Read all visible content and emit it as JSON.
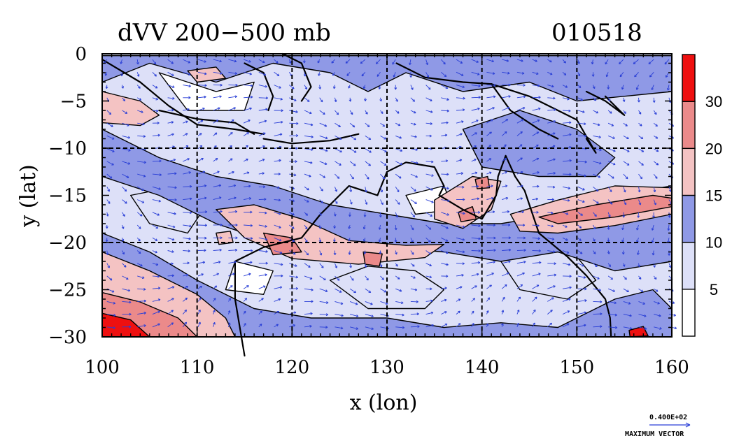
{
  "chart_data": {
    "type": "contour-map",
    "title": "dVV 200−500 mb",
    "date_label": "010518",
    "xlabel": "x (lon)",
    "ylabel": "y (lat)",
    "xlim": [
      100,
      160
    ],
    "ylim": [
      -30,
      0
    ],
    "x_ticks": [
      100,
      110,
      120,
      130,
      140,
      150,
      160
    ],
    "x_tick_labels": [
      "100",
      "110",
      "120",
      "130",
      "140",
      "150",
      "160"
    ],
    "y_ticks": [
      0,
      -5,
      -10,
      -15,
      -20,
      -25,
      -30
    ],
    "y_tick_labels": [
      "0",
      "−5",
      "−10",
      "−15",
      "−20",
      "−25",
      "−30"
    ],
    "grid_x": [
      110,
      120,
      130,
      140,
      150
    ],
    "grid_y": [
      -10,
      -20
    ],
    "colorbar": {
      "levels": [
        0,
        5,
        10,
        15,
        20,
        30,
        40
      ],
      "labels": [
        "5",
        "10",
        "15",
        "20",
        "30"
      ],
      "colors": [
        "#ffffff",
        "#dde0f8",
        "#8f99e6",
        "#f4c3c3",
        "#eb8a8a",
        "#ee1010"
      ]
    },
    "vector_color": "#2a3fd6",
    "max_vector": {
      "value": "0.400E+02",
      "label": "MAXIMUM VECTOR"
    },
    "regions": [
      {
        "level": 2,
        "poly": [
          [
            100,
            -0.2
          ],
          [
            160,
            -0.2
          ],
          [
            160,
            -4
          ],
          [
            150,
            -5
          ],
          [
            145,
            -3
          ],
          [
            138,
            -4
          ],
          [
            132,
            -2
          ],
          [
            128,
            -4
          ],
          [
            124,
            -2
          ],
          [
            118,
            -1
          ],
          [
            112,
            -3
          ],
          [
            105,
            -1
          ],
          [
            100,
            -3
          ]
        ]
      },
      {
        "level": 2,
        "poly": [
          [
            100,
            -8
          ],
          [
            106,
            -11
          ],
          [
            112,
            -13
          ],
          [
            118,
            -14
          ],
          [
            124,
            -16
          ],
          [
            130,
            -17
          ],
          [
            136,
            -18
          ],
          [
            142,
            -18
          ],
          [
            148,
            -17
          ],
          [
            154,
            -15
          ],
          [
            160,
            -14
          ],
          [
            160,
            -22
          ],
          [
            154,
            -23
          ],
          [
            148,
            -21
          ],
          [
            142,
            -22
          ],
          [
            136,
            -21
          ],
          [
            130,
            -20.5
          ],
          [
            124,
            -21.5
          ],
          [
            118,
            -20
          ],
          [
            112,
            -18
          ],
          [
            106,
            -15
          ],
          [
            100,
            -13
          ]
        ]
      },
      {
        "level": 2,
        "poly": [
          [
            100,
            -19
          ],
          [
            105,
            -21
          ],
          [
            110,
            -24
          ],
          [
            116,
            -27
          ],
          [
            122,
            -28
          ],
          [
            130,
            -28
          ],
          [
            136,
            -29
          ],
          [
            142,
            -28.5
          ],
          [
            148,
            -29
          ],
          [
            154,
            -26
          ],
          [
            158,
            -25
          ],
          [
            160,
            -27
          ],
          [
            160,
            -30
          ],
          [
            100,
            -30
          ]
        ]
      },
      {
        "level": 2,
        "poly": [
          [
            138,
            -8
          ],
          [
            144,
            -6
          ],
          [
            150,
            -8
          ],
          [
            154,
            -11
          ],
          [
            152,
            -13
          ],
          [
            146,
            -13
          ],
          [
            140,
            -12
          ]
        ]
      },
      {
        "level": 1,
        "poly": [
          [
            103,
            -15
          ],
          [
            108,
            -14
          ],
          [
            111,
            -16
          ],
          [
            109,
            -19
          ],
          [
            105,
            -18
          ]
        ]
      },
      {
        "level": 1,
        "poly": [
          [
            124,
            -24
          ],
          [
            128,
            -22.5
          ],
          [
            133,
            -23
          ],
          [
            136,
            -25
          ],
          [
            134,
            -27
          ],
          [
            128,
            -27
          ]
        ]
      },
      {
        "level": 1,
        "poly": [
          [
            142,
            -22
          ],
          [
            146,
            -20.5
          ],
          [
            150,
            -21.5
          ],
          [
            152,
            -24
          ],
          [
            149,
            -26
          ],
          [
            144,
            -25
          ]
        ]
      },
      {
        "level": 0,
        "poly": [
          [
            106,
            -2
          ],
          [
            112,
            -4
          ],
          [
            116,
            -3
          ],
          [
            115,
            -6
          ],
          [
            109,
            -6
          ]
        ]
      },
      {
        "level": 0,
        "poly": [
          [
            132,
            -15
          ],
          [
            136,
            -14
          ],
          [
            137,
            -16.5
          ],
          [
            133,
            -17
          ]
        ]
      },
      {
        "level": 0,
        "poly": [
          [
            114,
            -22
          ],
          [
            118,
            -23
          ],
          [
            117,
            -25.5
          ],
          [
            113,
            -25
          ]
        ]
      },
      {
        "level": 3,
        "poly": [
          [
            100,
            -4
          ],
          [
            104,
            -5
          ],
          [
            106,
            -6.5
          ],
          [
            104,
            -7.6
          ],
          [
            100,
            -7.3
          ]
        ]
      },
      {
        "level": 3,
        "poly": [
          [
            112,
            -16.5
          ],
          [
            116,
            -16
          ],
          [
            121,
            -17.5
          ],
          [
            126,
            -19.8
          ],
          [
            132,
            -20.3
          ],
          [
            136,
            -20.2
          ],
          [
            134,
            -21.6
          ],
          [
            127,
            -22.3
          ],
          [
            120,
            -21.7
          ],
          [
            115,
            -19.5
          ]
        ]
      },
      {
        "level": 3,
        "poly": [
          [
            135,
            -15.5
          ],
          [
            139,
            -13
          ],
          [
            142,
            -13.5
          ],
          [
            141,
            -16.5
          ],
          [
            138,
            -18.5
          ],
          [
            135,
            -17.5
          ]
        ]
      },
      {
        "level": 3,
        "poly": [
          [
            143,
            -17
          ],
          [
            148,
            -15.5
          ],
          [
            154,
            -14
          ],
          [
            160,
            -14.2
          ],
          [
            160,
            -17
          ],
          [
            154,
            -18.2
          ],
          [
            148,
            -19
          ],
          [
            144,
            -18.8
          ]
        ]
      },
      {
        "level": 3,
        "poly": [
          [
            100,
            -21
          ],
          [
            105,
            -23
          ],
          [
            110,
            -25.5
          ],
          [
            113,
            -28
          ],
          [
            114,
            -30
          ],
          [
            100,
            -30
          ]
        ]
      },
      {
        "level": 3,
        "poly": [
          [
            112,
            -19
          ],
          [
            113.5,
            -18.8
          ],
          [
            113.8,
            -20
          ],
          [
            112.3,
            -20.2
          ]
        ]
      },
      {
        "level": 3,
        "poly": [
          [
            109,
            -1.8
          ],
          [
            112,
            -1.4
          ],
          [
            113,
            -2.6
          ],
          [
            110,
            -3
          ]
        ]
      },
      {
        "level": 4,
        "poly": [
          [
            117,
            -19
          ],
          [
            120,
            -19.5
          ],
          [
            121,
            -21
          ],
          [
            118,
            -21.3
          ]
        ]
      },
      {
        "level": 4,
        "poly": [
          [
            127.5,
            -21
          ],
          [
            129.5,
            -21.2
          ],
          [
            129.2,
            -22.5
          ],
          [
            127.7,
            -22.3
          ]
        ]
      },
      {
        "level": 4,
        "poly": [
          [
            137.5,
            -16.8
          ],
          [
            139,
            -16.2
          ],
          [
            139.4,
            -17.5
          ],
          [
            137.8,
            -17.8
          ]
        ]
      },
      {
        "level": 4,
        "poly": [
          [
            139.3,
            -13.3
          ],
          [
            140.6,
            -13
          ],
          [
            140.8,
            -14.2
          ],
          [
            139.5,
            -14.3
          ]
        ]
      },
      {
        "level": 4,
        "poly": [
          [
            146,
            -17.3
          ],
          [
            152,
            -16
          ],
          [
            158,
            -15
          ],
          [
            160,
            -15.3
          ],
          [
            160,
            -16.2
          ],
          [
            154,
            -17.3
          ],
          [
            148,
            -18
          ]
        ]
      },
      {
        "level": 4,
        "poly": [
          [
            100,
            -25.3
          ],
          [
            104,
            -26.3
          ],
          [
            108,
            -28
          ],
          [
            110,
            -30
          ],
          [
            100,
            -30
          ]
        ]
      },
      {
        "level": 5,
        "poly": [
          [
            100,
            -27.5
          ],
          [
            103,
            -28.2
          ],
          [
            105,
            -30
          ],
          [
            100,
            -30
          ]
        ]
      },
      {
        "level": 5,
        "poly": [
          [
            155.5,
            -29.3
          ],
          [
            157,
            -28.9
          ],
          [
            157.5,
            -29.9
          ],
          [
            155.6,
            -30
          ]
        ]
      }
    ],
    "coastlines": [
      [
        [
          100,
          -0.6
        ],
        [
          104,
          -3
        ],
        [
          107,
          -5.5
        ],
        [
          110,
          -7.5
        ],
        [
          114,
          -8
        ],
        [
          117,
          -8.5
        ]
      ],
      [
        [
          106,
          -6
        ],
        [
          110,
          -6.9
        ],
        [
          114,
          -7.3
        ],
        [
          116,
          -8.5
        ]
      ],
      [
        [
          117,
          -9
        ],
        [
          120,
          -9.5
        ],
        [
          124,
          -9.2
        ],
        [
          127,
          -8.5
        ]
      ],
      [
        [
          115,
          -1
        ],
        [
          117,
          -2
        ],
        [
          118,
          -4.5
        ],
        [
          117.5,
          -6
        ]
      ],
      [
        [
          119,
          0
        ],
        [
          121,
          -1
        ],
        [
          122,
          -3.5
        ],
        [
          121,
          -5
        ]
      ],
      [
        [
          131,
          -1
        ],
        [
          134,
          -2.5
        ],
        [
          138,
          -3
        ],
        [
          141,
          -3.2
        ],
        [
          145,
          -4.5
        ],
        [
          148,
          -6
        ],
        [
          150,
          -7
        ],
        [
          152,
          -10.5
        ],
        [
          151,
          -9
        ]
      ],
      [
        [
          141,
          -3.2
        ],
        [
          143,
          -6
        ],
        [
          146,
          -8
        ],
        [
          148,
          -9
        ]
      ],
      [
        [
          151,
          -4
        ],
        [
          153,
          -5
        ],
        [
          155,
          -6.5
        ],
        [
          153,
          -4.5
        ]
      ],
      [
        [
          114,
          -22
        ],
        [
          114,
          -26
        ],
        [
          115,
          -32
        ]
      ],
      [
        [
          114,
          -22
        ],
        [
          117,
          -20.5
        ],
        [
          121,
          -19.5
        ],
        [
          123,
          -17
        ],
        [
          126,
          -14
        ],
        [
          129,
          -15
        ],
        [
          130,
          -12.5
        ],
        [
          132,
          -11.5
        ],
        [
          135,
          -12
        ],
        [
          136,
          -14
        ],
        [
          135.5,
          -15
        ],
        [
          138,
          -16.5
        ],
        [
          140,
          -17.5
        ],
        [
          141.5,
          -15
        ],
        [
          141.7,
          -13
        ],
        [
          142.5,
          -10.8
        ],
        [
          143.5,
          -13
        ],
        [
          144.5,
          -14.5
        ],
        [
          146,
          -19
        ],
        [
          149,
          -21.5
        ],
        [
          151,
          -23.5
        ],
        [
          153,
          -26
        ],
        [
          153.5,
          -28
        ],
        [
          153.6,
          -30
        ]
      ]
    ]
  }
}
